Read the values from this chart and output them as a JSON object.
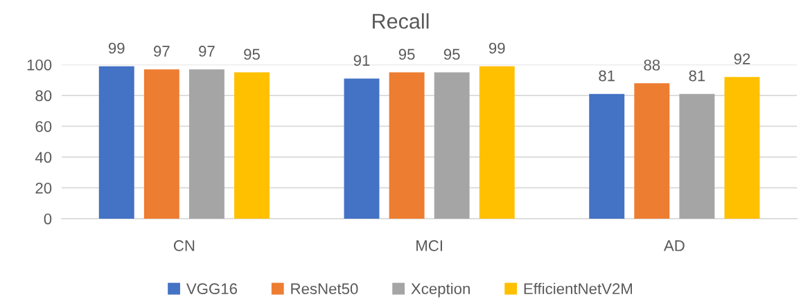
{
  "chart_data": {
    "type": "bar",
    "title": "Recall",
    "categories": [
      "CN",
      "MCI",
      "AD"
    ],
    "series": [
      {
        "name": "VGG16",
        "color": "#4472c4",
        "values": [
          99,
          91,
          81
        ]
      },
      {
        "name": "ResNet50",
        "color": "#ed7d31",
        "values": [
          97,
          95,
          88
        ]
      },
      {
        "name": "Xception",
        "color": "#a5a5a5",
        "values": [
          97,
          95,
          81
        ]
      },
      {
        "name": "EfficientNetV2M",
        "color": "#ffc000",
        "values": [
          95,
          99,
          92
        ]
      }
    ],
    "ylim": [
      0,
      100
    ],
    "yticks": [
      0,
      20,
      40,
      60,
      80,
      100
    ],
    "grid": "y",
    "legend": "bottom",
    "data_labels": true
  }
}
